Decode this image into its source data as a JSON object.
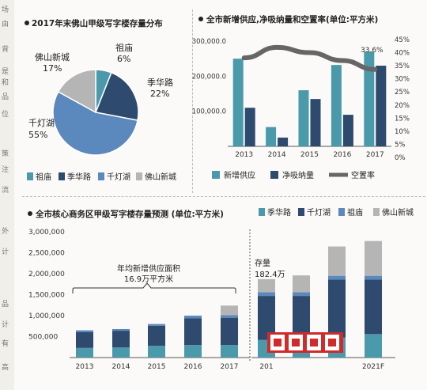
{
  "pie_chart": {
    "title": "2017年末佛山甲级写字楼存量分布",
    "slices": [
      {
        "name": "祖庙",
        "value": 6,
        "label": "祖庙",
        "pct": "6%",
        "color": "#4a9aab"
      },
      {
        "name": "季华路",
        "value": 22,
        "label": "季华路",
        "pct": "22%",
        "color": "#2e4a6e"
      },
      {
        "name": "千灯湖",
        "value": 55,
        "label": "千灯湖",
        "pct": "55%",
        "color": "#5b88bd"
      },
      {
        "name": "佛山新城",
        "value": 17,
        "label": "佛山新城",
        "pct": "17%",
        "color": "#b5b5b5"
      }
    ],
    "legend": [
      "祖庙",
      "季华路",
      "千灯湖",
      "佛山新城"
    ]
  },
  "supply_chart": {
    "title": "全市新增供应,净吸纳量和空置率(单位:平方米)",
    "categories": [
      "2013",
      "2014",
      "2015",
      "2016",
      "2017"
    ],
    "left_ticks": [
      "300,000.0",
      "200,000.0",
      "100,000.0"
    ],
    "right_ticks": [
      "45%",
      "40%",
      "35%",
      "30%",
      "25%",
      "20%",
      "15%",
      "10%",
      "5%",
      "0%"
    ],
    "vacancy_label": "33.6%",
    "legend": [
      "新增供应",
      "净吸纳量",
      "空置率"
    ],
    "colors": {
      "supply": "#4a9aab",
      "absorb": "#2e4a6e",
      "vacancy": "#666666"
    }
  },
  "stock_chart": {
    "title": "全市核心商务区甲级写字楼存量预测 (单位:平方米)",
    "legend": [
      "季华路",
      "千灯湖",
      "祖庙",
      "佛山新城"
    ],
    "y_ticks": [
      "3,000,000",
      "2,500,000",
      "2,000,000",
      "1,500,000",
      "1,000,000",
      "500,000"
    ],
    "categories_left": [
      "2013",
      "2014",
      "2015",
      "2016",
      "2017"
    ],
    "categories_right": [
      "201",
      "",
      "",
      "2021F"
    ],
    "annual_supply_label_1": "年均新增供应面积",
    "annual_supply_label_2": "16.9万平方米",
    "stock_label_1": "存量",
    "stock_label_2": "182.4万",
    "colors": {
      "jihua": "#4a9aab",
      "qiandeng": "#2e4a6e",
      "zumiao": "#5b88bd",
      "xincheng": "#b5b5b5"
    }
  },
  "chart_data": [
    {
      "type": "pie",
      "title": "2017年末佛山甲级写字楼存量分布",
      "categories": [
        "祖庙",
        "季华路",
        "千灯湖",
        "佛山新城"
      ],
      "values": [
        6,
        22,
        55,
        17
      ],
      "legend_position": "bottom"
    },
    {
      "type": "bar",
      "title": "全市新增供应,净吸纳量和空置率(单位:平方米)",
      "categories": [
        "2013",
        "2014",
        "2015",
        "2016",
        "2017"
      ],
      "series": [
        {
          "name": "新增供应",
          "values": [
            250000,
            55000,
            160000,
            232000,
            270000
          ]
        },
        {
          "name": "净吸纳量",
          "values": [
            110000,
            25000,
            135000,
            90000,
            230000
          ]
        },
        {
          "name": "空置率",
          "values": [
            38,
            42,
            40,
            37,
            33.6
          ]
        }
      ],
      "ylim": [
        0,
        300000
      ],
      "y2lim": [
        0,
        45
      ],
      "legend_position": "bottom"
    },
    {
      "type": "bar",
      "title": "全市核心商务区甲级写字楼存量预测 (单位:平方米)",
      "categories": [
        "2013",
        "2014",
        "2015",
        "2016",
        "2017",
        "201",
        "",
        "",
        "2021F"
      ],
      "series": [
        {
          "name": "季华路",
          "values": [
            230000,
            240000,
            280000,
            300000,
            300000,
            420000,
            420000,
            480000,
            560000
          ]
        },
        {
          "name": "千灯湖",
          "values": [
            380000,
            400000,
            480000,
            640000,
            650000,
            1050000,
            1050000,
            1380000,
            1300000
          ]
        },
        {
          "name": "祖庙",
          "values": [
            40000,
            40000,
            40000,
            60000,
            60000,
            90000,
            90000,
            90000,
            90000
          ]
        },
        {
          "name": "佛山新城",
          "values": [
            0,
            0,
            0,
            0,
            230000,
            310000,
            400000,
            700000,
            830000
          ]
        }
      ],
      "ylim": [
        0,
        3000000
      ],
      "legend_position": "top-right"
    }
  ]
}
